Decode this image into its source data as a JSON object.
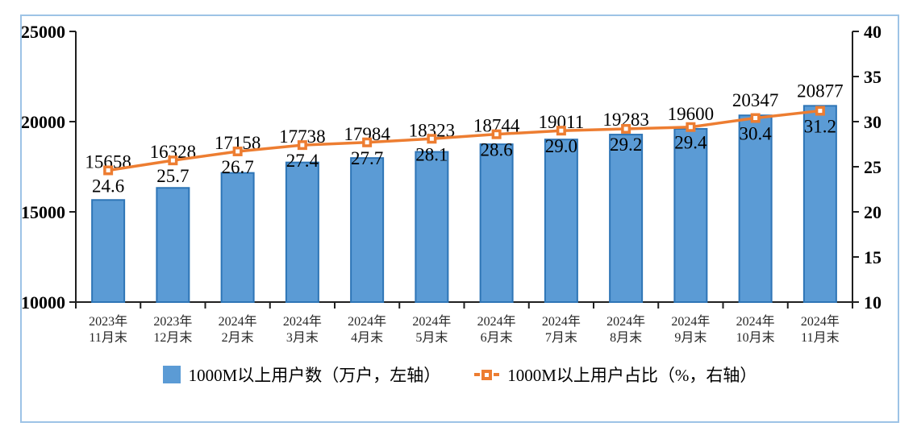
{
  "frame": {
    "border_color": "#9DC3E6",
    "background": "#FFFFFF",
    "axis_color": "#1F1F1F",
    "label_color": "#000000"
  },
  "chart_data": {
    "type": "combo-bar-line",
    "grid": false,
    "legend_position": "bottom",
    "categories": [
      [
        "2023年",
        "11月末"
      ],
      [
        "2023年",
        "12月末"
      ],
      [
        "2024年",
        "2月末"
      ],
      [
        "2024年",
        "3月末"
      ],
      [
        "2024年",
        "4月末"
      ],
      [
        "2024年",
        "5月末"
      ],
      [
        "2024年",
        "6月末"
      ],
      [
        "2024年",
        "7月末"
      ],
      [
        "2024年",
        "8月末"
      ],
      [
        "2024年",
        "9月末"
      ],
      [
        "2024年",
        "10月末"
      ],
      [
        "2024年",
        "11月末"
      ]
    ],
    "series": [
      {
        "name": "1000M以上用户数（万户，左轴）",
        "type": "bar",
        "axis": "left",
        "color": "#5B9BD5",
        "border_color": "#2E75B6",
        "values": [
          15658,
          16328,
          17158,
          17738,
          17984,
          18323,
          18744,
          19011,
          19283,
          19600,
          20347,
          20877
        ],
        "labels": [
          "15658",
          "16328",
          "17158",
          "17738",
          "17984",
          "18323",
          "18744",
          "19011",
          "19283",
          "19600",
          "20347",
          "20877"
        ]
      },
      {
        "name": "1000M以上用户占比（%，右轴）",
        "type": "line",
        "axis": "right",
        "color": "#ED7D31",
        "marker": "square-hollow",
        "values": [
          24.6,
          25.7,
          26.7,
          27.4,
          27.7,
          28.1,
          28.6,
          29.0,
          29.2,
          29.4,
          30.4,
          31.2
        ],
        "labels": [
          "24.6",
          "25.7",
          "26.7",
          "27.4",
          "27.7",
          "28.1",
          "28.6",
          "29.0",
          "29.2",
          "29.4",
          "30.4",
          "31.2"
        ]
      }
    ],
    "left_axis": {
      "min": 10000,
      "max": 25000,
      "ticks": [
        25000,
        20000,
        15000,
        10000
      ],
      "tick_labels": [
        "25000",
        "20000",
        "15000",
        "10000"
      ]
    },
    "right_axis": {
      "min": 10,
      "max": 40,
      "ticks": [
        40,
        35,
        30,
        25,
        20,
        15,
        10
      ],
      "tick_labels": [
        "40",
        "35",
        "30",
        "25",
        "20",
        "15",
        "10"
      ]
    }
  }
}
